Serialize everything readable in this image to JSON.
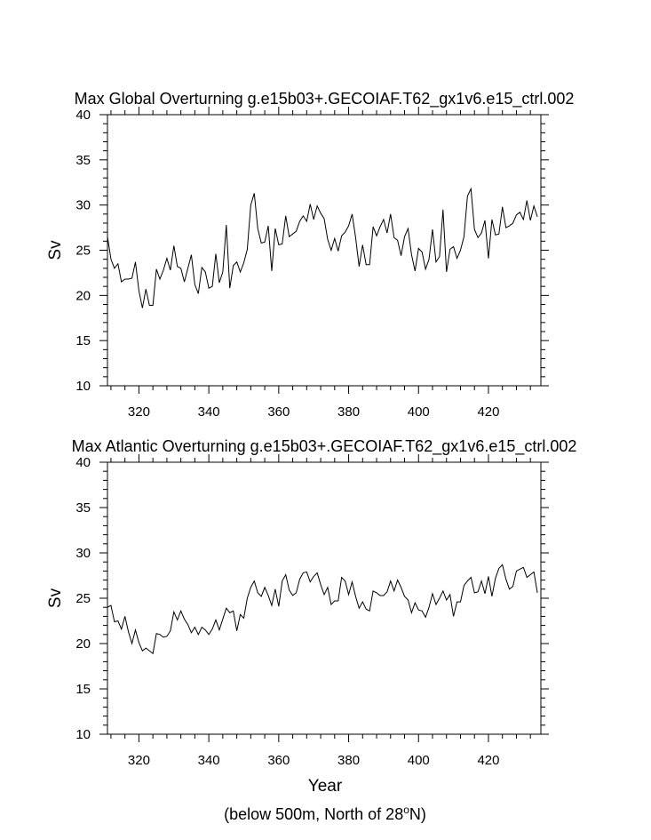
{
  "footer": {
    "xlabel": "Year",
    "note_prefix": "(below 500m, North of 28",
    "note_sup": "o",
    "note_suffix": "N)"
  },
  "chart_data": [
    {
      "type": "line",
      "title": "Max Global Overturning g.e15b03+.GECOIAF.T62_gx1v6.e15_ctrl.002",
      "xlabel": "",
      "ylabel": "Sv",
      "xlim": [
        311,
        435
      ],
      "ylim": [
        10,
        40
      ],
      "xticks": [
        320,
        340,
        360,
        380,
        400,
        420
      ],
      "yticks": [
        10,
        15,
        20,
        25,
        30,
        35,
        40
      ],
      "x_start": 311,
      "values": [
        26.5,
        24.0,
        23.0,
        23.5,
        21.5,
        21.8,
        21.8,
        21.9,
        23.7,
        20.5,
        18.6,
        20.7,
        18.9,
        18.9,
        22.9,
        21.8,
        22.8,
        24.1,
        22.8,
        25.5,
        23.2,
        23.0,
        21.5,
        23.0,
        24.5,
        21.2,
        20.2,
        23.1,
        22.6,
        20.8,
        21.0,
        24.6,
        21.4,
        22.6,
        27.8,
        20.8,
        23.3,
        23.7,
        22.6,
        23.6,
        25.1,
        30.0,
        31.3,
        27.4,
        25.8,
        25.9,
        27.7,
        22.7,
        27.4,
        25.6,
        25.7,
        28.8,
        26.5,
        26.8,
        27.1,
        28.2,
        28.8,
        28.2,
        30.1,
        28.4,
        29.9,
        29.1,
        28.5,
        26.2,
        25.0,
        26.3,
        24.9,
        26.6,
        27.0,
        27.7,
        29.0,
        26.4,
        23.2,
        25.6,
        23.4,
        23.4,
        27.6,
        26.6,
        27.6,
        28.4,
        26.9,
        29.0,
        26.4,
        26.1,
        24.4,
        26.5,
        27.4,
        24.5,
        22.7,
        25.2,
        24.8,
        22.9,
        24.0,
        27.3,
        23.7,
        24.3,
        29.5,
        22.6,
        25.1,
        25.4,
        24.1,
        25.0,
        26.5,
        31.0,
        31.8,
        27.3,
        26.4,
        26.9,
        28.3,
        24.1,
        28.4,
        26.7,
        26.8,
        29.8,
        27.5,
        27.7,
        28.0,
        28.9,
        29.2,
        28.4,
        30.5,
        28.3,
        29.9,
        28.7
      ]
    },
    {
      "type": "line",
      "title": "Max Atlantic Overturning g.e15b03+.GECOIAF.T62_gx1v6.e15_ctrl.002",
      "xlabel": "",
      "ylabel": "Sv",
      "xlim": [
        311,
        435
      ],
      "ylim": [
        10,
        40
      ],
      "xticks": [
        320,
        340,
        360,
        380,
        400,
        420
      ],
      "yticks": [
        10,
        15,
        20,
        25,
        30,
        35,
        40
      ],
      "x_start": 311,
      "values": [
        24.0,
        24.2,
        22.4,
        22.5,
        21.6,
        23.0,
        21.3,
        20.0,
        21.5,
        20.1,
        19.2,
        19.5,
        19.2,
        18.9,
        21.1,
        21.0,
        20.7,
        20.8,
        21.4,
        23.5,
        22.6,
        23.6,
        22.7,
        22.1,
        21.2,
        21.8,
        21.0,
        21.8,
        21.5,
        21.0,
        21.6,
        22.6,
        21.5,
        22.7,
        23.9,
        23.4,
        23.6,
        21.4,
        23.2,
        22.8,
        25.0,
        26.2,
        26.9,
        25.6,
        25.2,
        26.2,
        25.3,
        24.2,
        26.0,
        24.1,
        26.9,
        27.6,
        25.9,
        25.3,
        25.6,
        27.1,
        27.8,
        27.9,
        26.8,
        27.4,
        27.8,
        26.5,
        25.4,
        26.2,
        24.3,
        24.7,
        24.7,
        27.3,
        26.9,
        25.4,
        26.8,
        25.2,
        23.9,
        24.6,
        23.8,
        23.6,
        25.8,
        25.6,
        25.3,
        25.3,
        25.7,
        26.9,
        25.8,
        27.0,
        26.2,
        25.2,
        24.8,
        23.4,
        24.5,
        23.7,
        23.6,
        22.9,
        24.0,
        25.5,
        24.3,
        25.0,
        25.8,
        24.8,
        25.4,
        23.0,
        24.6,
        24.6,
        26.4,
        26.9,
        27.3,
        25.6,
        25.7,
        26.9,
        25.5,
        27.4,
        25.2,
        27.2,
        28.3,
        28.7,
        27.1,
        26.0,
        26.3,
        28.0,
        28.2,
        28.4,
        27.3,
        27.6,
        27.9,
        25.6
      ]
    }
  ]
}
